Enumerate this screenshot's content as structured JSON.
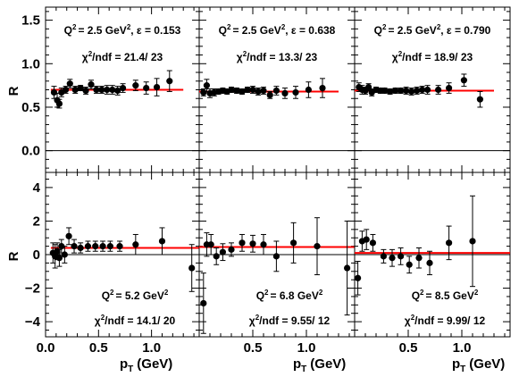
{
  "figure": {
    "ylabel_top": "R",
    "ylabel_bottom": "R",
    "xlabel": "(GeV)",
    "xlabel_var": "p",
    "xlabel_sub": "T"
  },
  "colors": {
    "fit": "#ff0000",
    "marker": "#000000",
    "zero_line": "#000000",
    "frame": "#000000"
  },
  "chart_data": [
    {
      "type": "scatter",
      "panel": "top-left",
      "q2_label": "Q",
      "q2_value": "= 2.5 GeV",
      "eps_label": ", ε = 0.153",
      "chi_label": "χ",
      "chi_value": "/ndf = 21.4/ 23",
      "xlim": [
        0,
        1.45
      ],
      "ylim": [
        -0.25,
        1.65
      ],
      "yticks": [
        "0.0",
        "0.5",
        "1.0",
        "1.5"
      ],
      "ytick_values": [
        0,
        0.5,
        1.0,
        1.5
      ],
      "fit": {
        "y": 0.7,
        "x": [
          0.05,
          1.3
        ]
      },
      "points": [
        {
          "x": 0.08,
          "y": 0.67,
          "err": 0.07
        },
        {
          "x": 0.11,
          "y": 0.58,
          "err": 0.08
        },
        {
          "x": 0.13,
          "y": 0.54,
          "err": 0.05
        },
        {
          "x": 0.15,
          "y": 0.67,
          "err": 0.05
        },
        {
          "x": 0.19,
          "y": 0.7,
          "err": 0.04
        },
        {
          "x": 0.23,
          "y": 0.77,
          "err": 0.05
        },
        {
          "x": 0.28,
          "y": 0.7,
          "err": 0.04
        },
        {
          "x": 0.33,
          "y": 0.72,
          "err": 0.03
        },
        {
          "x": 0.38,
          "y": 0.69,
          "err": 0.04
        },
        {
          "x": 0.43,
          "y": 0.76,
          "err": 0.05
        },
        {
          "x": 0.48,
          "y": 0.7,
          "err": 0.04
        },
        {
          "x": 0.53,
          "y": 0.7,
          "err": 0.04
        },
        {
          "x": 0.58,
          "y": 0.7,
          "err": 0.05
        },
        {
          "x": 0.63,
          "y": 0.7,
          "err": 0.05
        },
        {
          "x": 0.68,
          "y": 0.69,
          "err": 0.05
        },
        {
          "x": 0.73,
          "y": 0.72,
          "err": 0.05
        },
        {
          "x": 0.85,
          "y": 0.75,
          "err": 0.06
        },
        {
          "x": 0.95,
          "y": 0.72,
          "err": 0.07
        },
        {
          "x": 1.05,
          "y": 0.73,
          "err": 0.1
        },
        {
          "x": 1.17,
          "y": 0.8,
          "err": 0.12
        }
      ]
    },
    {
      "type": "scatter",
      "panel": "top-center",
      "q2_label": "Q",
      "q2_value": "= 2.5 GeV",
      "eps_label": ", ε = 0.638",
      "chi_label": "χ",
      "chi_value": "/ndf = 13.3/ 23",
      "xlim": [
        0,
        1.45
      ],
      "ylim": [
        -0.25,
        1.65
      ],
      "fit": {
        "y": 0.68,
        "x": [
          0.0,
          1.3
        ]
      },
      "points": [
        {
          "x": 0.04,
          "y": 0.67,
          "err": 0.04
        },
        {
          "x": 0.07,
          "y": 0.75,
          "err": 0.07
        },
        {
          "x": 0.1,
          "y": 0.66,
          "err": 0.05
        },
        {
          "x": 0.14,
          "y": 0.67,
          "err": 0.04
        },
        {
          "x": 0.18,
          "y": 0.68,
          "err": 0.03
        },
        {
          "x": 0.22,
          "y": 0.69,
          "err": 0.03
        },
        {
          "x": 0.26,
          "y": 0.68,
          "err": 0.03
        },
        {
          "x": 0.3,
          "y": 0.7,
          "err": 0.03
        },
        {
          "x": 0.35,
          "y": 0.69,
          "err": 0.03
        },
        {
          "x": 0.4,
          "y": 0.68,
          "err": 0.03
        },
        {
          "x": 0.45,
          "y": 0.7,
          "err": 0.03
        },
        {
          "x": 0.5,
          "y": 0.7,
          "err": 0.04
        },
        {
          "x": 0.55,
          "y": 0.68,
          "err": 0.04
        },
        {
          "x": 0.6,
          "y": 0.69,
          "err": 0.04
        },
        {
          "x": 0.66,
          "y": 0.64,
          "err": 0.04
        },
        {
          "x": 0.72,
          "y": 0.69,
          "err": 0.05
        },
        {
          "x": 0.8,
          "y": 0.66,
          "err": 0.06
        },
        {
          "x": 0.9,
          "y": 0.67,
          "err": 0.07
        },
        {
          "x": 1.02,
          "y": 0.7,
          "err": 0.09
        },
        {
          "x": 1.15,
          "y": 0.72,
          "err": 0.11
        }
      ]
    },
    {
      "type": "scatter",
      "panel": "top-right",
      "q2_label": "Q",
      "q2_value": "= 2.5 GeV",
      "eps_label": ", ε = 0.790",
      "chi_label": "χ",
      "chi_value": "/ndf = 18.9/ 23",
      "xlim": [
        0,
        1.45
      ],
      "ylim": [
        -0.25,
        1.65
      ],
      "fit": {
        "y": 0.69,
        "x": [
          0.0,
          1.3
        ]
      },
      "points": [
        {
          "x": 0.04,
          "y": 0.73,
          "err": 0.05
        },
        {
          "x": 0.07,
          "y": 0.7,
          "err": 0.05
        },
        {
          "x": 0.1,
          "y": 0.69,
          "err": 0.04
        },
        {
          "x": 0.13,
          "y": 0.73,
          "err": 0.04
        },
        {
          "x": 0.16,
          "y": 0.67,
          "err": 0.04
        },
        {
          "x": 0.2,
          "y": 0.7,
          "err": 0.03
        },
        {
          "x": 0.24,
          "y": 0.69,
          "err": 0.03
        },
        {
          "x": 0.28,
          "y": 0.69,
          "err": 0.03
        },
        {
          "x": 0.33,
          "y": 0.68,
          "err": 0.03
        },
        {
          "x": 0.38,
          "y": 0.69,
          "err": 0.03
        },
        {
          "x": 0.43,
          "y": 0.69,
          "err": 0.03
        },
        {
          "x": 0.48,
          "y": 0.69,
          "err": 0.04
        },
        {
          "x": 0.53,
          "y": 0.68,
          "err": 0.04
        },
        {
          "x": 0.58,
          "y": 0.69,
          "err": 0.04
        },
        {
          "x": 0.63,
          "y": 0.7,
          "err": 0.04
        },
        {
          "x": 0.68,
          "y": 0.7,
          "err": 0.05
        },
        {
          "x": 0.78,
          "y": 0.7,
          "err": 0.05
        },
        {
          "x": 0.88,
          "y": 0.72,
          "err": 0.06
        },
        {
          "x": 1.02,
          "y": 0.81,
          "err": 0.07
        },
        {
          "x": 1.17,
          "y": 0.59,
          "err": 0.09
        }
      ]
    },
    {
      "type": "scatter",
      "panel": "bottom-left",
      "q2_label": "Q",
      "q2_value": "= 5.2 GeV",
      "chi_label": "χ",
      "chi_value": "/ndf = 14.1/ 20",
      "xlim": [
        0,
        1.45
      ],
      "ylim": [
        -4.9,
        4.9
      ],
      "yticks": [
        "−4",
        "−2",
        "0",
        "2",
        "4"
      ],
      "ytick_values": [
        -4,
        -2,
        0,
        2,
        4
      ],
      "xticks": [
        "0.0",
        "0.5",
        "1.0"
      ],
      "xtick_values": [
        0,
        0.5,
        1.0
      ],
      "fit": {
        "y": 0.4,
        "x": [
          0.05,
          1.45
        ]
      },
      "points": [
        {
          "x": 0.07,
          "y": 0.1,
          "err": 0.6
        },
        {
          "x": 0.09,
          "y": -0.1,
          "err": 0.7
        },
        {
          "x": 0.11,
          "y": 0.2,
          "err": 0.5
        },
        {
          "x": 0.13,
          "y": -0.2,
          "err": 0.5
        },
        {
          "x": 0.15,
          "y": 0.5,
          "err": 0.4
        },
        {
          "x": 0.18,
          "y": 0.0,
          "err": 0.5
        },
        {
          "x": 0.22,
          "y": 1.1,
          "err": 0.5
        },
        {
          "x": 0.27,
          "y": 0.5,
          "err": 0.4
        },
        {
          "x": 0.33,
          "y": 0.4,
          "err": 0.3
        },
        {
          "x": 0.4,
          "y": 0.5,
          "err": 0.3
        },
        {
          "x": 0.47,
          "y": 0.5,
          "err": 0.3
        },
        {
          "x": 0.54,
          "y": 0.5,
          "err": 0.3
        },
        {
          "x": 0.61,
          "y": 0.5,
          "err": 0.3
        },
        {
          "x": 0.7,
          "y": 0.5,
          "err": 0.3
        },
        {
          "x": 0.85,
          "y": 0.6,
          "err": 0.6
        },
        {
          "x": 1.1,
          "y": 0.8,
          "err": 0.8
        },
        {
          "x": 1.38,
          "y": -0.8,
          "err": 1.4
        }
      ]
    },
    {
      "type": "scatter",
      "panel": "bottom-center",
      "q2_label": "Q",
      "q2_value": "= 6.8 GeV",
      "chi_label": "χ",
      "chi_value": "/ndf = 9.55/ 12",
      "xlim": [
        0,
        1.45
      ],
      "ylim": [
        -4.9,
        4.9
      ],
      "xticks": [
        "0.5",
        "1.0"
      ],
      "xtick_values": [
        0.5,
        1.0
      ],
      "fit": {
        "y": 0.45,
        "x": [
          0.0,
          1.45
        ]
      },
      "points": [
        {
          "x": 0.04,
          "y": -2.9,
          "err": 1.8
        },
        {
          "x": 0.07,
          "y": 0.6,
          "err": 0.7
        },
        {
          "x": 0.11,
          "y": 0.6,
          "err": 0.6
        },
        {
          "x": 0.16,
          "y": -0.1,
          "err": 0.5
        },
        {
          "x": 0.22,
          "y": 0.15,
          "err": 0.5
        },
        {
          "x": 0.3,
          "y": 0.3,
          "err": 0.4
        },
        {
          "x": 0.4,
          "y": 0.7,
          "err": 0.5
        },
        {
          "x": 0.5,
          "y": 0.65,
          "err": 0.5
        },
        {
          "x": 0.6,
          "y": 0.6,
          "err": 0.6
        },
        {
          "x": 0.72,
          "y": -0.1,
          "err": 0.9
        },
        {
          "x": 0.88,
          "y": 0.7,
          "err": 1.2
        },
        {
          "x": 1.1,
          "y": 0.5,
          "err": 1.7
        },
        {
          "x": 1.38,
          "y": -0.8,
          "err": 2.8
        }
      ]
    },
    {
      "type": "scatter",
      "panel": "bottom-right",
      "q2_label": "Q",
      "q2_value": "= 8.5 GeV",
      "chi_label": "χ",
      "chi_value": "/ndf = 9.99/ 12",
      "xlim": [
        0,
        1.45
      ],
      "ylim": [
        -4.9,
        4.9
      ],
      "xticks": [
        "0.5",
        "1.0"
      ],
      "xtick_values": [
        0.5,
        1.0
      ],
      "fit": {
        "y": 0.1,
        "x": [
          0.0,
          1.45
        ]
      },
      "points": [
        {
          "x": 0.03,
          "y": -1.4,
          "err": 1.0
        },
        {
          "x": 0.07,
          "y": 0.8,
          "err": 0.6
        },
        {
          "x": 0.11,
          "y": 0.9,
          "err": 0.6
        },
        {
          "x": 0.17,
          "y": 0.7,
          "err": 0.5
        },
        {
          "x": 0.27,
          "y": -0.1,
          "err": 0.4
        },
        {
          "x": 0.35,
          "y": -0.2,
          "err": 0.5
        },
        {
          "x": 0.43,
          "y": -0.1,
          "err": 0.5
        },
        {
          "x": 0.51,
          "y": -0.6,
          "err": 0.5
        },
        {
          "x": 0.6,
          "y": -0.2,
          "err": 0.6
        },
        {
          "x": 0.7,
          "y": -0.5,
          "err": 0.7
        },
        {
          "x": 0.88,
          "y": 0.7,
          "err": 1.0
        },
        {
          "x": 1.1,
          "y": 0.8,
          "err": 2.7
        }
      ]
    }
  ]
}
